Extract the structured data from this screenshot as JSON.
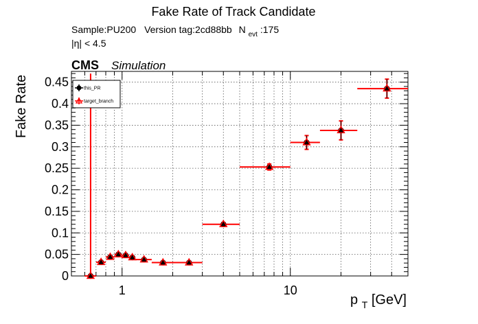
{
  "chart_data": {
    "type": "scatter",
    "title": "Fake Rate of Track Candidate",
    "subtitle_line1": {
      "sample": "Sample:PU200",
      "version": "Version tag:2cd88bb",
      "nevt_main": "N",
      "nevt_sub": "evt",
      "nevt_value": ":175"
    },
    "subtitle_line2": "|η| < 4.5",
    "cms_label": "CMS",
    "cms_sub": "Simulation",
    "ylabel": "Fake Rate",
    "xlabel_main": "p",
    "xlabel_sub": "T",
    "xlabel_unit": " [GeV]",
    "x_scale": "log",
    "xlim": [
      0.5,
      50
    ],
    "ylim": [
      0,
      0.475
    ],
    "x_tick_labels": [
      {
        "value": 1,
        "label": "1"
      },
      {
        "value": 10,
        "label": "10"
      }
    ],
    "y_ticks": [
      0,
      0.05,
      0.1,
      0.15,
      0.2,
      0.25,
      0.3,
      0.35,
      0.4,
      0.45
    ],
    "y_tick_labels": [
      "0",
      "0.05",
      "0.1",
      "0.15",
      "0.2",
      "0.25",
      "0.3",
      "0.35",
      "0.4",
      "0.45"
    ],
    "grid": true,
    "legend_position": "top-left",
    "colors": {
      "this_PR": "#000000",
      "target_branch": "#ff0000"
    },
    "series": [
      {
        "name": "this_PR",
        "marker": "circle",
        "points": [
          {
            "x": 0.65,
            "y": 0.0,
            "xlo": 0.6,
            "xhi": 0.7,
            "yerr": 0.0
          },
          {
            "x": 0.75,
            "y": 0.032,
            "xlo": 0.7,
            "xhi": 0.8,
            "yerr": 0.003
          },
          {
            "x": 0.85,
            "y": 0.044,
            "xlo": 0.8,
            "xhi": 0.9,
            "yerr": 0.003
          },
          {
            "x": 0.95,
            "y": 0.05,
            "xlo": 0.9,
            "xhi": 1.0,
            "yerr": 0.003
          },
          {
            "x": 1.05,
            "y": 0.048,
            "xlo": 1.0,
            "xhi": 1.1,
            "yerr": 0.003
          },
          {
            "x": 1.15,
            "y": 0.043,
            "xlo": 1.1,
            "xhi": 1.2,
            "yerr": 0.003
          },
          {
            "x": 1.35,
            "y": 0.038,
            "xlo": 1.2,
            "xhi": 1.5,
            "yerr": 0.003
          },
          {
            "x": 1.75,
            "y": 0.031,
            "xlo": 1.5,
            "xhi": 2.0,
            "yerr": 0.002
          },
          {
            "x": 2.5,
            "y": 0.031,
            "xlo": 2.0,
            "xhi": 3.0,
            "yerr": 0.002
          },
          {
            "x": 4.0,
            "y": 0.12,
            "xlo": 3.0,
            "xhi": 5.0,
            "yerr": 0.004
          },
          {
            "x": 7.5,
            "y": 0.253,
            "xlo": 5.0,
            "xhi": 10.0,
            "yerr": 0.007
          },
          {
            "x": 12.5,
            "y": 0.31,
            "xlo": 10.0,
            "xhi": 15.0,
            "yerr": 0.016
          },
          {
            "x": 20.0,
            "y": 0.338,
            "xlo": 15.0,
            "xhi": 25.0,
            "yerr": 0.022
          },
          {
            "x": 37.5,
            "y": 0.435,
            "xlo": 25.0,
            "xhi": 50.0,
            "yerr": 0.022
          }
        ]
      },
      {
        "name": "target_branch",
        "marker": "open-triangle",
        "points": [
          {
            "x": 0.65,
            "y": 0.0,
            "xlo": 0.6,
            "xhi": 0.7,
            "yerr": 0.0,
            "yhi_err": 0.47
          },
          {
            "x": 0.75,
            "y": 0.032,
            "xlo": 0.7,
            "xhi": 0.8,
            "yerr": 0.003
          },
          {
            "x": 0.85,
            "y": 0.044,
            "xlo": 0.8,
            "xhi": 0.9,
            "yerr": 0.003
          },
          {
            "x": 0.95,
            "y": 0.05,
            "xlo": 0.9,
            "xhi": 1.0,
            "yerr": 0.003
          },
          {
            "x": 1.05,
            "y": 0.048,
            "xlo": 1.0,
            "xhi": 1.1,
            "yerr": 0.003
          },
          {
            "x": 1.15,
            "y": 0.043,
            "xlo": 1.1,
            "xhi": 1.2,
            "yerr": 0.003
          },
          {
            "x": 1.35,
            "y": 0.038,
            "xlo": 1.2,
            "xhi": 1.5,
            "yerr": 0.003
          },
          {
            "x": 1.75,
            "y": 0.031,
            "xlo": 1.5,
            "xhi": 2.0,
            "yerr": 0.002
          },
          {
            "x": 2.5,
            "y": 0.031,
            "xlo": 2.0,
            "xhi": 3.0,
            "yerr": 0.002
          },
          {
            "x": 4.0,
            "y": 0.12,
            "xlo": 3.0,
            "xhi": 5.0,
            "yerr": 0.004
          },
          {
            "x": 7.5,
            "y": 0.253,
            "xlo": 5.0,
            "xhi": 10.0,
            "yerr": 0.007
          },
          {
            "x": 12.5,
            "y": 0.31,
            "xlo": 10.0,
            "xhi": 15.0,
            "yerr": 0.016
          },
          {
            "x": 20.0,
            "y": 0.338,
            "xlo": 15.0,
            "xhi": 25.0,
            "yerr": 0.022
          },
          {
            "x": 37.5,
            "y": 0.435,
            "xlo": 25.0,
            "xhi": 50.0,
            "yerr": 0.022
          }
        ]
      }
    ]
  }
}
